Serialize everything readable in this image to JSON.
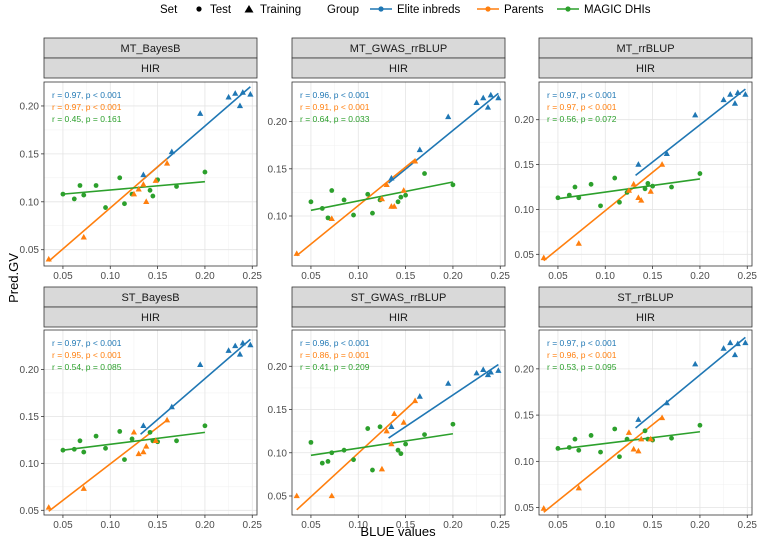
{
  "legend": {
    "set_title": "Set",
    "set_items": [
      {
        "label": "Test",
        "shape": "circle"
      },
      {
        "label": "Training",
        "shape": "triangle"
      }
    ],
    "group_title": "Group",
    "group_items": [
      {
        "label": "Elite inbreds",
        "color": "#1f77b4"
      },
      {
        "label": "Parents",
        "color": "#ff7f0e"
      },
      {
        "label": "MAGIC DHIs",
        "color": "#2ca02c"
      }
    ]
  },
  "chart_data": {
    "type": "scatter",
    "xlabel": "BLUE values",
    "ylabel": "Pred.GV",
    "xlim": [
      0.03,
      0.255
    ],
    "xticks": [
      0.05,
      0.1,
      0.15,
      0.2,
      0.25
    ],
    "xtick_labels": [
      "0.05",
      "0.10",
      "0.15",
      "0.20",
      "0.25"
    ],
    "common": {
      "elite_x": [
        0.135,
        0.165,
        0.195,
        0.225,
        0.232,
        0.237,
        0.24,
        0.248
      ],
      "elite_set": [
        "Training",
        "Training",
        "Training",
        "Training",
        "Training",
        "Training",
        "Training",
        "Training"
      ],
      "parents_x": [
        0.035,
        0.072,
        0.125,
        0.13,
        0.135,
        0.138,
        0.148,
        0.16
      ],
      "parents_set": [
        "Training",
        "Training",
        "Training",
        "Training",
        "Training",
        "Training",
        "Training",
        "Training"
      ],
      "magic_x": [
        0.05,
        0.062,
        0.068,
        0.072,
        0.085,
        0.095,
        0.11,
        0.115,
        0.123,
        0.142,
        0.145,
        0.15,
        0.17,
        0.2
      ],
      "magic_set": [
        "Test",
        "Test",
        "Test",
        "Test",
        "Test",
        "Test",
        "Test",
        "Test",
        "Test",
        "Test",
        "Test",
        "Test",
        "Test",
        "Test"
      ]
    },
    "panels": [
      {
        "method": "MT_BayesB",
        "trait": "HIR",
        "ylim": [
          0.033,
          0.225
        ],
        "yticks": [
          0.05,
          0.1,
          0.15,
          0.2
        ],
        "ytick_labels": [
          "0.05",
          "0.10",
          "0.15",
          "0.20"
        ],
        "elite_y": [
          0.128,
          0.152,
          0.192,
          0.209,
          0.213,
          0.2,
          0.214,
          0.212
        ],
        "parents_y": [
          0.04,
          0.063,
          0.108,
          0.113,
          0.118,
          0.1,
          0.122,
          0.14
        ],
        "magic_y": [
          0.108,
          0.103,
          0.117,
          0.107,
          0.117,
          0.094,
          0.125,
          0.098,
          0.108,
          0.112,
          0.106,
          0.123,
          0.116,
          0.131
        ],
        "fits": [
          {
            "group": "Elite inbreds",
            "x": [
              0.132,
              0.248
            ],
            "y": [
              0.121,
              0.22
            ]
          },
          {
            "group": "Parents",
            "x": [
              0.035,
              0.16
            ],
            "y": [
              0.038,
              0.145
            ]
          },
          {
            "group": "MAGIC DHIs",
            "x": [
              0.05,
              0.2
            ],
            "y": [
              0.108,
              0.121
            ]
          }
        ],
        "stats": [
          {
            "group": "Elite inbreds",
            "text": "r = 0.97, p < 0.001"
          },
          {
            "group": "Parents",
            "text": "r = 0.97, p < 0.001"
          },
          {
            "group": "MAGIC DHIs",
            "text": "r = 0.45, p = 0.161"
          }
        ]
      },
      {
        "method": "MT_GWAS_rrBLUP",
        "trait": "HIR",
        "ylim": [
          0.047,
          0.242
        ],
        "yticks": [
          0.1,
          0.15,
          0.2
        ],
        "ytick_labels": [
          "0.10",
          "0.15",
          "0.20"
        ],
        "elite_y": [
          0.14,
          0.17,
          0.205,
          0.22,
          0.225,
          0.215,
          0.228,
          0.225
        ],
        "parents_y": [
          0.06,
          0.097,
          0.118,
          0.133,
          0.11,
          0.11,
          0.127,
          0.158
        ],
        "magic_y": [
          0.115,
          0.108,
          0.098,
          0.127,
          0.117,
          0.101,
          0.123,
          0.103,
          0.117,
          0.115,
          0.12,
          0.122,
          0.145,
          0.133
        ],
        "fits": [
          {
            "group": "Elite inbreds",
            "x": [
              0.132,
              0.248
            ],
            "y": [
              0.135,
              0.23
            ]
          },
          {
            "group": "Parents",
            "x": [
              0.035,
              0.16
            ],
            "y": [
              0.058,
              0.16
            ]
          },
          {
            "group": "MAGIC DHIs",
            "x": [
              0.05,
              0.2
            ],
            "y": [
              0.106,
              0.136
            ]
          }
        ],
        "stats": [
          {
            "group": "Elite inbreds",
            "text": "r = 0.96, p < 0.001"
          },
          {
            "group": "Parents",
            "text": "r = 0.91, p < 0.001"
          },
          {
            "group": "MAGIC DHIs",
            "text": "r = 0.64, p = 0.033"
          }
        ]
      },
      {
        "method": "MT_rrBLUP",
        "trait": "HIR",
        "ylim": [
          0.037,
          0.242
        ],
        "yticks": [
          0.05,
          0.1,
          0.15,
          0.2
        ],
        "ytick_labels": [
          "0.05",
          "0.10",
          "0.15",
          "0.20"
        ],
        "elite_y": [
          0.15,
          0.162,
          0.205,
          0.222,
          0.228,
          0.218,
          0.23,
          0.228
        ],
        "parents_y": [
          0.046,
          0.062,
          0.121,
          0.128,
          0.113,
          0.11,
          0.12,
          0.15
        ],
        "magic_y": [
          0.113,
          0.116,
          0.125,
          0.113,
          0.128,
          0.104,
          0.135,
          0.108,
          0.119,
          0.123,
          0.129,
          0.126,
          0.125,
          0.14
        ],
        "fits": [
          {
            "group": "Elite inbreds",
            "x": [
              0.132,
              0.248
            ],
            "y": [
              0.138,
              0.234
            ]
          },
          {
            "group": "Parents",
            "x": [
              0.035,
              0.16
            ],
            "y": [
              0.043,
              0.15
            ]
          },
          {
            "group": "MAGIC DHIs",
            "x": [
              0.05,
              0.2
            ],
            "y": [
              0.112,
              0.134
            ]
          }
        ],
        "stats": [
          {
            "group": "Elite inbreds",
            "text": "r = 0.97, p < 0.001"
          },
          {
            "group": "Parents",
            "text": "r = 0.97, p < 0.001"
          },
          {
            "group": "MAGIC DHIs",
            "text": "r = 0.56, p = 0.072"
          }
        ]
      },
      {
        "method": "ST_BayesB",
        "trait": "HIR",
        "ylim": [
          0.045,
          0.242
        ],
        "yticks": [
          0.05,
          0.1,
          0.15,
          0.2
        ],
        "ytick_labels": [
          "0.05",
          "0.10",
          "0.15",
          "0.20"
        ],
        "elite_y": [
          0.14,
          0.16,
          0.205,
          0.22,
          0.225,
          0.216,
          0.228,
          0.226
        ],
        "parents_y": [
          0.053,
          0.073,
          0.133,
          0.11,
          0.112,
          0.118,
          0.124,
          0.146
        ],
        "magic_y": [
          0.114,
          0.115,
          0.124,
          0.112,
          0.129,
          0.116,
          0.134,
          0.104,
          0.126,
          0.133,
          0.124,
          0.123,
          0.124,
          0.14
        ],
        "fits": [
          {
            "group": "Elite inbreds",
            "x": [
              0.132,
              0.248
            ],
            "y": [
              0.131,
              0.232
            ]
          },
          {
            "group": "Parents",
            "x": [
              0.035,
              0.16
            ],
            "y": [
              0.049,
              0.146
            ]
          },
          {
            "group": "MAGIC DHIs",
            "x": [
              0.05,
              0.2
            ],
            "y": [
              0.114,
              0.133
            ]
          }
        ],
        "stats": [
          {
            "group": "Elite inbreds",
            "text": "r = 0.97, p < 0.001"
          },
          {
            "group": "Parents",
            "text": "r = 0.95, p < 0.001"
          },
          {
            "group": "MAGIC DHIs",
            "text": "r = 0.54, p = 0.085"
          }
        ]
      },
      {
        "method": "ST_GWAS_rrBLUP",
        "trait": "HIR",
        "ylim": [
          0.028,
          0.242
        ],
        "yticks": [
          0.05,
          0.1,
          0.15,
          0.2
        ],
        "ytick_labels": [
          "0.05",
          "0.10",
          "0.15",
          "0.20"
        ],
        "elite_y": [
          0.13,
          0.165,
          0.18,
          0.192,
          0.196,
          0.19,
          0.193,
          0.195
        ],
        "parents_y": [
          0.05,
          0.05,
          0.081,
          0.125,
          0.11,
          0.145,
          0.135,
          0.16
        ],
        "magic_y": [
          0.112,
          0.088,
          0.09,
          0.1,
          0.103,
          0.092,
          0.128,
          0.08,
          0.13,
          0.103,
          0.099,
          0.11,
          0.121,
          0.133
        ],
        "fits": [
          {
            "group": "Elite inbreds",
            "x": [
              0.132,
              0.248
            ],
            "y": [
              0.117,
              0.202
            ]
          },
          {
            "group": "Parents",
            "x": [
              0.035,
              0.16
            ],
            "y": [
              0.034,
              0.16
            ]
          },
          {
            "group": "MAGIC DHIs",
            "x": [
              0.05,
              0.2
            ],
            "y": [
              0.097,
              0.122
            ]
          }
        ],
        "stats": [
          {
            "group": "Elite inbreds",
            "text": "r = 0.96, p < 0.001"
          },
          {
            "group": "Parents",
            "text": "r = 0.86, p = 0.001"
          },
          {
            "group": "MAGIC DHIs",
            "text": "r = 0.41, p = 0.209"
          }
        ]
      },
      {
        "method": "ST_rrBLUP",
        "trait": "HIR",
        "ylim": [
          0.042,
          0.242
        ],
        "yticks": [
          0.05,
          0.1,
          0.15,
          0.2
        ],
        "ytick_labels": [
          "0.05",
          "0.10",
          "0.15",
          "0.20"
        ],
        "elite_y": [
          0.145,
          0.163,
          0.205,
          0.222,
          0.228,
          0.215,
          0.227,
          0.228
        ],
        "parents_y": [
          0.049,
          0.071,
          0.131,
          0.113,
          0.111,
          0.124,
          0.124,
          0.147
        ],
        "magic_y": [
          0.114,
          0.115,
          0.124,
          0.112,
          0.128,
          0.11,
          0.135,
          0.105,
          0.124,
          0.133,
          0.124,
          0.123,
          0.125,
          0.139
        ],
        "fits": [
          {
            "group": "Elite inbreds",
            "x": [
              0.132,
              0.248
            ],
            "y": [
              0.136,
              0.234
            ]
          },
          {
            "group": "Parents",
            "x": [
              0.035,
              0.16
            ],
            "y": [
              0.045,
              0.148
            ]
          },
          {
            "group": "MAGIC DHIs",
            "x": [
              0.05,
              0.2
            ],
            "y": [
              0.113,
              0.132
            ]
          }
        ],
        "stats": [
          {
            "group": "Elite inbreds",
            "text": "r = 0.97, p < 0.001"
          },
          {
            "group": "Parents",
            "text": "r = 0.96, p < 0.001"
          },
          {
            "group": "MAGIC DHIs",
            "text": "r = 0.53, p = 0.095"
          }
        ]
      }
    ]
  }
}
